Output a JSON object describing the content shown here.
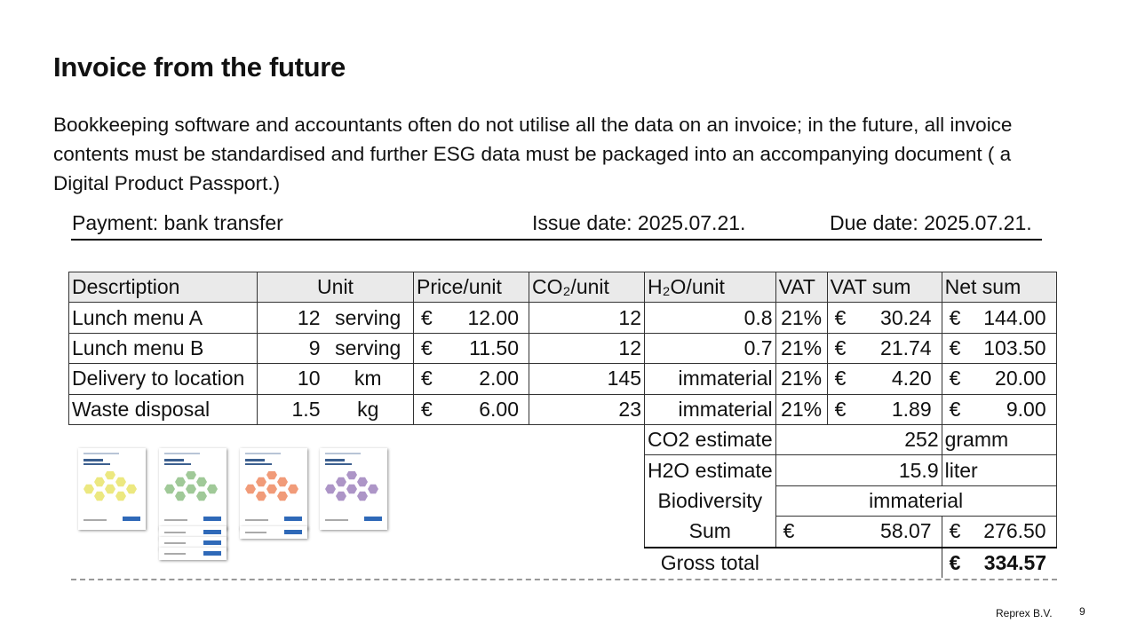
{
  "slide": {
    "title": "Invoice from the future",
    "intro": "Bookkeeping software and accountants often do not utilise all the data on an invoice; in the future, all invoice contents must be standardised and further ESG data must be packaged into an accompanying document ( a Digital Product Passport.)"
  },
  "payment": {
    "method": "Payment: bank transfer",
    "issue": "Issue date: 2025.07.21.",
    "due": "Due date: 2025.07.21."
  },
  "table": {
    "headers": {
      "description": "Descrtiption",
      "unit": "Unit",
      "price": "Price/unit",
      "co2": "CO₂/unit",
      "h2o": "H₂O/unit",
      "vat": "VAT",
      "vat_sum": "VAT sum",
      "net_sum": "Net sum"
    },
    "currency": "€",
    "rows": [
      {
        "desc": "Lunch menu A",
        "qty": "12",
        "unit": "serving",
        "price": "12.00",
        "co2": "12",
        "h2o": "0.8",
        "vat": "21%",
        "vat_sum": "30.24",
        "net_sum": "144.00"
      },
      {
        "desc": "Lunch menu B",
        "qty": "9",
        "unit": "serving",
        "price": "11.50",
        "co2": "12",
        "h2o": "0.7",
        "vat": "21%",
        "vat_sum": "21.74",
        "net_sum": "103.50"
      },
      {
        "desc": "Delivery to location",
        "qty": "10",
        "unit": "km",
        "price": "2.00",
        "co2": "145",
        "h2o": "immaterial",
        "vat": "21%",
        "vat_sum": "4.20",
        "net_sum": "20.00"
      },
      {
        "desc": "Waste disposal",
        "qty": "1.5",
        "unit": "kg",
        "price": "6.00",
        "co2": "23",
        "h2o": "immaterial",
        "vat": "21%",
        "vat_sum": "1.89",
        "net_sum": "9.00"
      }
    ],
    "summary": {
      "co2_label": "CO2 estimate",
      "co2_value": "252",
      "co2_unit": "gramm",
      "h2o_label": "H2O estimate",
      "h2o_value": "15.9",
      "h2o_unit": "liter",
      "bio_label": "Biodiversity",
      "bio_value": "immaterial",
      "sum_label": "Sum",
      "sum_vat": "58.07",
      "sum_net": "276.50",
      "gross_label": "Gross total",
      "gross_value": "334.57"
    }
  },
  "covers": [
    {
      "color": "#e9e46a"
    },
    {
      "color": "#8fbf86"
    },
    {
      "color": "#ee8a62"
    },
    {
      "color": "#9f83bd"
    }
  ],
  "footer": {
    "company": "Reprex B.V.",
    "page": "9"
  }
}
